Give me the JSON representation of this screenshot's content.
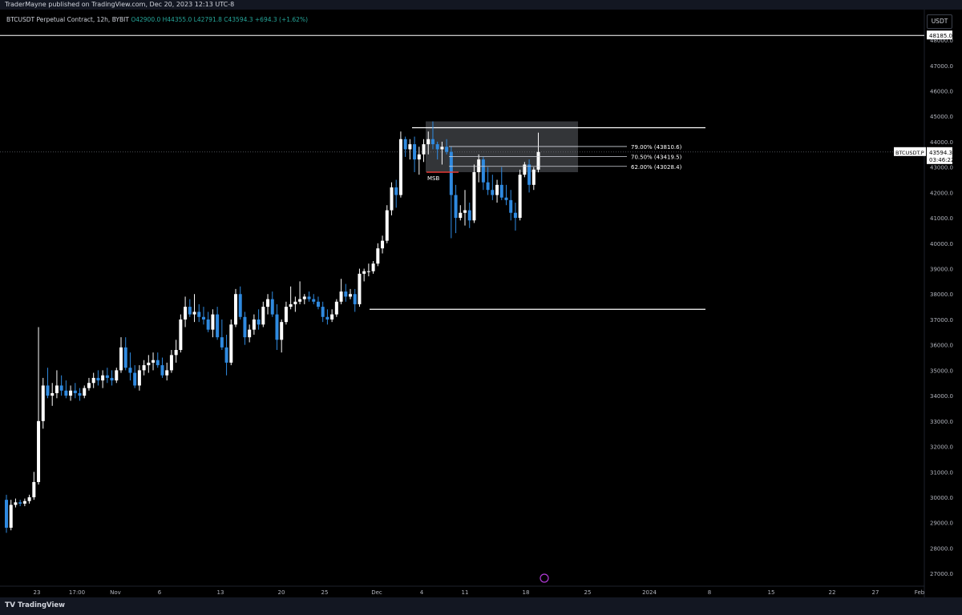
{
  "header": {
    "published_text": "TraderMayne published on TradingView.com, Dec 20, 2023 12:13 UTC-8"
  },
  "legend": {
    "symbol_text": "BTCUSDT Perpetual Contract, 12h, BYBIT",
    "ohlc_text": "O42900.0 H44355.0 L42791.8 C43594.3 +694.3 (+1.62%)"
  },
  "currency_button": "USDT",
  "price_label": {
    "symbol": "BTCUSDT.P",
    "price": "43594.3",
    "countdown": "03:46:22"
  },
  "level_label": "48185.0",
  "msb_label": "MSB",
  "fib_labels": [
    "79.00% (43810.6)",
    "70.50% (43419.5)",
    "62.00% (43028.4)"
  ],
  "footer": {
    "brand": "TradingView"
  },
  "colors": {
    "up": "#ffffff",
    "down": "#2f8ae0",
    "grid_line": "#ffffff",
    "msb_line": "#e53935",
    "zone": "#5d6066"
  },
  "chart_data": {
    "type": "candlestick",
    "symbol": "BTCUSDT Perpetual Contract",
    "interval": "12h",
    "exchange": "BYBIT",
    "ylim": [
      26500,
      49200
    ],
    "y_ticks": [
      27000,
      28000,
      29000,
      30000,
      31000,
      32000,
      33000,
      34000,
      35000,
      36000,
      37000,
      38000,
      39000,
      40000,
      41000,
      42000,
      43000,
      44000,
      45000,
      46000,
      47000,
      48000
    ],
    "x_ticks": [
      "23",
      "17:00",
      "Nov",
      "6",
      "13",
      "20",
      "25",
      "Dec",
      "4",
      "11",
      "18",
      "25",
      "2024",
      "8",
      "15",
      "22",
      "27",
      "Feb"
    ],
    "candles_ohlc": [
      [
        29900,
        30100,
        28600,
        28800
      ],
      [
        28800,
        29900,
        28700,
        29700
      ],
      [
        29700,
        29950,
        29600,
        29800
      ],
      [
        29800,
        29900,
        29650,
        29750
      ],
      [
        29750,
        29950,
        29650,
        29850
      ],
      [
        29850,
        30100,
        29750,
        30000
      ],
      [
        30000,
        31000,
        29900,
        30600
      ],
      [
        30600,
        36700,
        30500,
        33000
      ],
      [
        33000,
        34700,
        32700,
        34400
      ],
      [
        34400,
        35100,
        33900,
        34000
      ],
      [
        34000,
        34500,
        33600,
        34100
      ],
      [
        34100,
        35000,
        33900,
        34400
      ],
      [
        34400,
        34800,
        34000,
        34200
      ],
      [
        34200,
        34600,
        33900,
        34000
      ],
      [
        34000,
        34400,
        33800,
        34200
      ],
      [
        34200,
        34500,
        33900,
        34100
      ],
      [
        34100,
        34300,
        33800,
        34000
      ],
      [
        34000,
        34400,
        33900,
        34300
      ],
      [
        34300,
        34700,
        34200,
        34500
      ],
      [
        34500,
        34900,
        34300,
        34700
      ],
      [
        34700,
        35000,
        34400,
        34600
      ],
      [
        34600,
        35000,
        34300,
        34800
      ],
      [
        34800,
        35100,
        34500,
        34700
      ],
      [
        34700,
        35000,
        34400,
        34600
      ],
      [
        34600,
        35100,
        34500,
        35000
      ],
      [
        35000,
        36300,
        34900,
        35900
      ],
      [
        35900,
        36300,
        35000,
        35100
      ],
      [
        35100,
        35700,
        34600,
        34900
      ],
      [
        34900,
        35200,
        34300,
        34400
      ],
      [
        34400,
        35200,
        34200,
        35000
      ],
      [
        35000,
        35400,
        34800,
        35200
      ],
      [
        35200,
        35600,
        34900,
        35300
      ],
      [
        35300,
        35700,
        35000,
        35400
      ],
      [
        35400,
        35700,
        35100,
        35200
      ],
      [
        35200,
        35500,
        34700,
        34800
      ],
      [
        34800,
        35300,
        34600,
        35000
      ],
      [
        35000,
        35800,
        34900,
        35600
      ],
      [
        35600,
        36200,
        35300,
        35800
      ],
      [
        35800,
        37200,
        35700,
        37000
      ],
      [
        37000,
        37900,
        36700,
        37500
      ],
      [
        37500,
        37800,
        37100,
        37200
      ],
      [
        37200,
        38000,
        36900,
        37300
      ],
      [
        37300,
        37600,
        36900,
        37100
      ],
      [
        37100,
        37500,
        36800,
        37000
      ],
      [
        37000,
        37300,
        36500,
        36600
      ],
      [
        36600,
        37400,
        36300,
        37200
      ],
      [
        37200,
        37500,
        36200,
        36300
      ],
      [
        36300,
        37000,
        35800,
        35900
      ],
      [
        35900,
        36400,
        34800,
        35300
      ],
      [
        35300,
        37000,
        35200,
        36800
      ],
      [
        36800,
        38200,
        36700,
        38000
      ],
      [
        38000,
        38300,
        37000,
        37100
      ],
      [
        37100,
        37300,
        36000,
        36300
      ],
      [
        36300,
        36800,
        36100,
        36600
      ],
      [
        36600,
        37200,
        36400,
        37000
      ],
      [
        37000,
        37400,
        36600,
        36800
      ],
      [
        36800,
        37700,
        36700,
        37500
      ],
      [
        37500,
        38000,
        37200,
        37800
      ],
      [
        37800,
        38100,
        37100,
        37200
      ],
      [
        37200,
        37600,
        35800,
        36200
      ],
      [
        36200,
        37000,
        35700,
        36900
      ],
      [
        36900,
        37700,
        36800,
        37500
      ],
      [
        37500,
        38300,
        37400,
        37600
      ],
      [
        37600,
        37900,
        37300,
        37700
      ],
      [
        37700,
        38500,
        37600,
        37800
      ],
      [
        37800,
        38000,
        37600,
        37900
      ],
      [
        37900,
        38100,
        37700,
        37800
      ],
      [
        37800,
        38000,
        37600,
        37700
      ],
      [
        37700,
        37900,
        37400,
        37500
      ],
      [
        37500,
        37700,
        36900,
        37100
      ],
      [
        37100,
        37400,
        36800,
        37000
      ],
      [
        37000,
        37400,
        36900,
        37200
      ],
      [
        37200,
        37800,
        37100,
        37700
      ],
      [
        37700,
        38600,
        37600,
        38100
      ],
      [
        38100,
        38400,
        37700,
        37900
      ],
      [
        37900,
        38200,
        37800,
        38000
      ],
      [
        38000,
        38200,
        37300,
        37600
      ],
      [
        37600,
        39000,
        37500,
        38800
      ],
      [
        38800,
        39000,
        38500,
        38900
      ],
      [
        38900,
        39200,
        38700,
        38900
      ],
      [
        38900,
        39300,
        38800,
        39200
      ],
      [
        39200,
        40000,
        39100,
        39800
      ],
      [
        39800,
        40300,
        39600,
        40100
      ],
      [
        40100,
        41500,
        40000,
        41300
      ],
      [
        41300,
        42400,
        41100,
        42200
      ],
      [
        42200,
        42500,
        41400,
        41900
      ],
      [
        41900,
        44400,
        41800,
        44100
      ],
      [
        44100,
        44200,
        43400,
        43700
      ],
      [
        43700,
        44100,
        43300,
        43900
      ],
      [
        43900,
        44200,
        42800,
        43300
      ],
      [
        43300,
        43800,
        42700,
        43500
      ],
      [
        43500,
        44100,
        43200,
        43900
      ],
      [
        43900,
        44400,
        43500,
        44100
      ],
      [
        44100,
        44800,
        43700,
        43900
      ],
      [
        43900,
        44000,
        43300,
        43700
      ],
      [
        43700,
        44000,
        43100,
        43800
      ],
      [
        43800,
        44100,
        43500,
        43600
      ],
      [
        43600,
        43800,
        40200,
        41900
      ],
      [
        41900,
        42300,
        40400,
        41000
      ],
      [
        41000,
        41500,
        40900,
        41200
      ],
      [
        41200,
        42100,
        40700,
        41300
      ],
      [
        41300,
        41600,
        40600,
        40900
      ],
      [
        40900,
        43100,
        40800,
        42800
      ],
      [
        42800,
        43500,
        42400,
        43300
      ],
      [
        43300,
        43400,
        42100,
        42400
      ],
      [
        42400,
        43000,
        41900,
        42100
      ],
      [
        42100,
        42700,
        41700,
        41900
      ],
      [
        41900,
        42500,
        41600,
        42300
      ],
      [
        42300,
        43000,
        41700,
        41800
      ],
      [
        41800,
        42300,
        41500,
        41700
      ],
      [
        41700,
        42100,
        40900,
        41200
      ],
      [
        41200,
        41600,
        40500,
        41000
      ],
      [
        41000,
        42900,
        40900,
        42700
      ],
      [
        42700,
        43200,
        42600,
        43100
      ],
      [
        43100,
        43300,
        42000,
        42300
      ],
      [
        42300,
        43000,
        42100,
        42900
      ],
      [
        42900,
        44355,
        42791.8,
        43594.3
      ]
    ],
    "annotations": {
      "horizontal_levels": [
        48185.0,
        44550,
        37400
      ],
      "zone": {
        "top": 44800,
        "bottom": 42800
      },
      "fib_levels": [
        {
          "label": "79.00% (43810.6)",
          "value": 43810.6
        },
        {
          "label": "70.50% (43419.5)",
          "value": 43419.5
        },
        {
          "label": "62.00% (43028.4)",
          "value": 43028.4
        }
      ],
      "msb_level": 42800,
      "last_price": 43594.3
    }
  }
}
